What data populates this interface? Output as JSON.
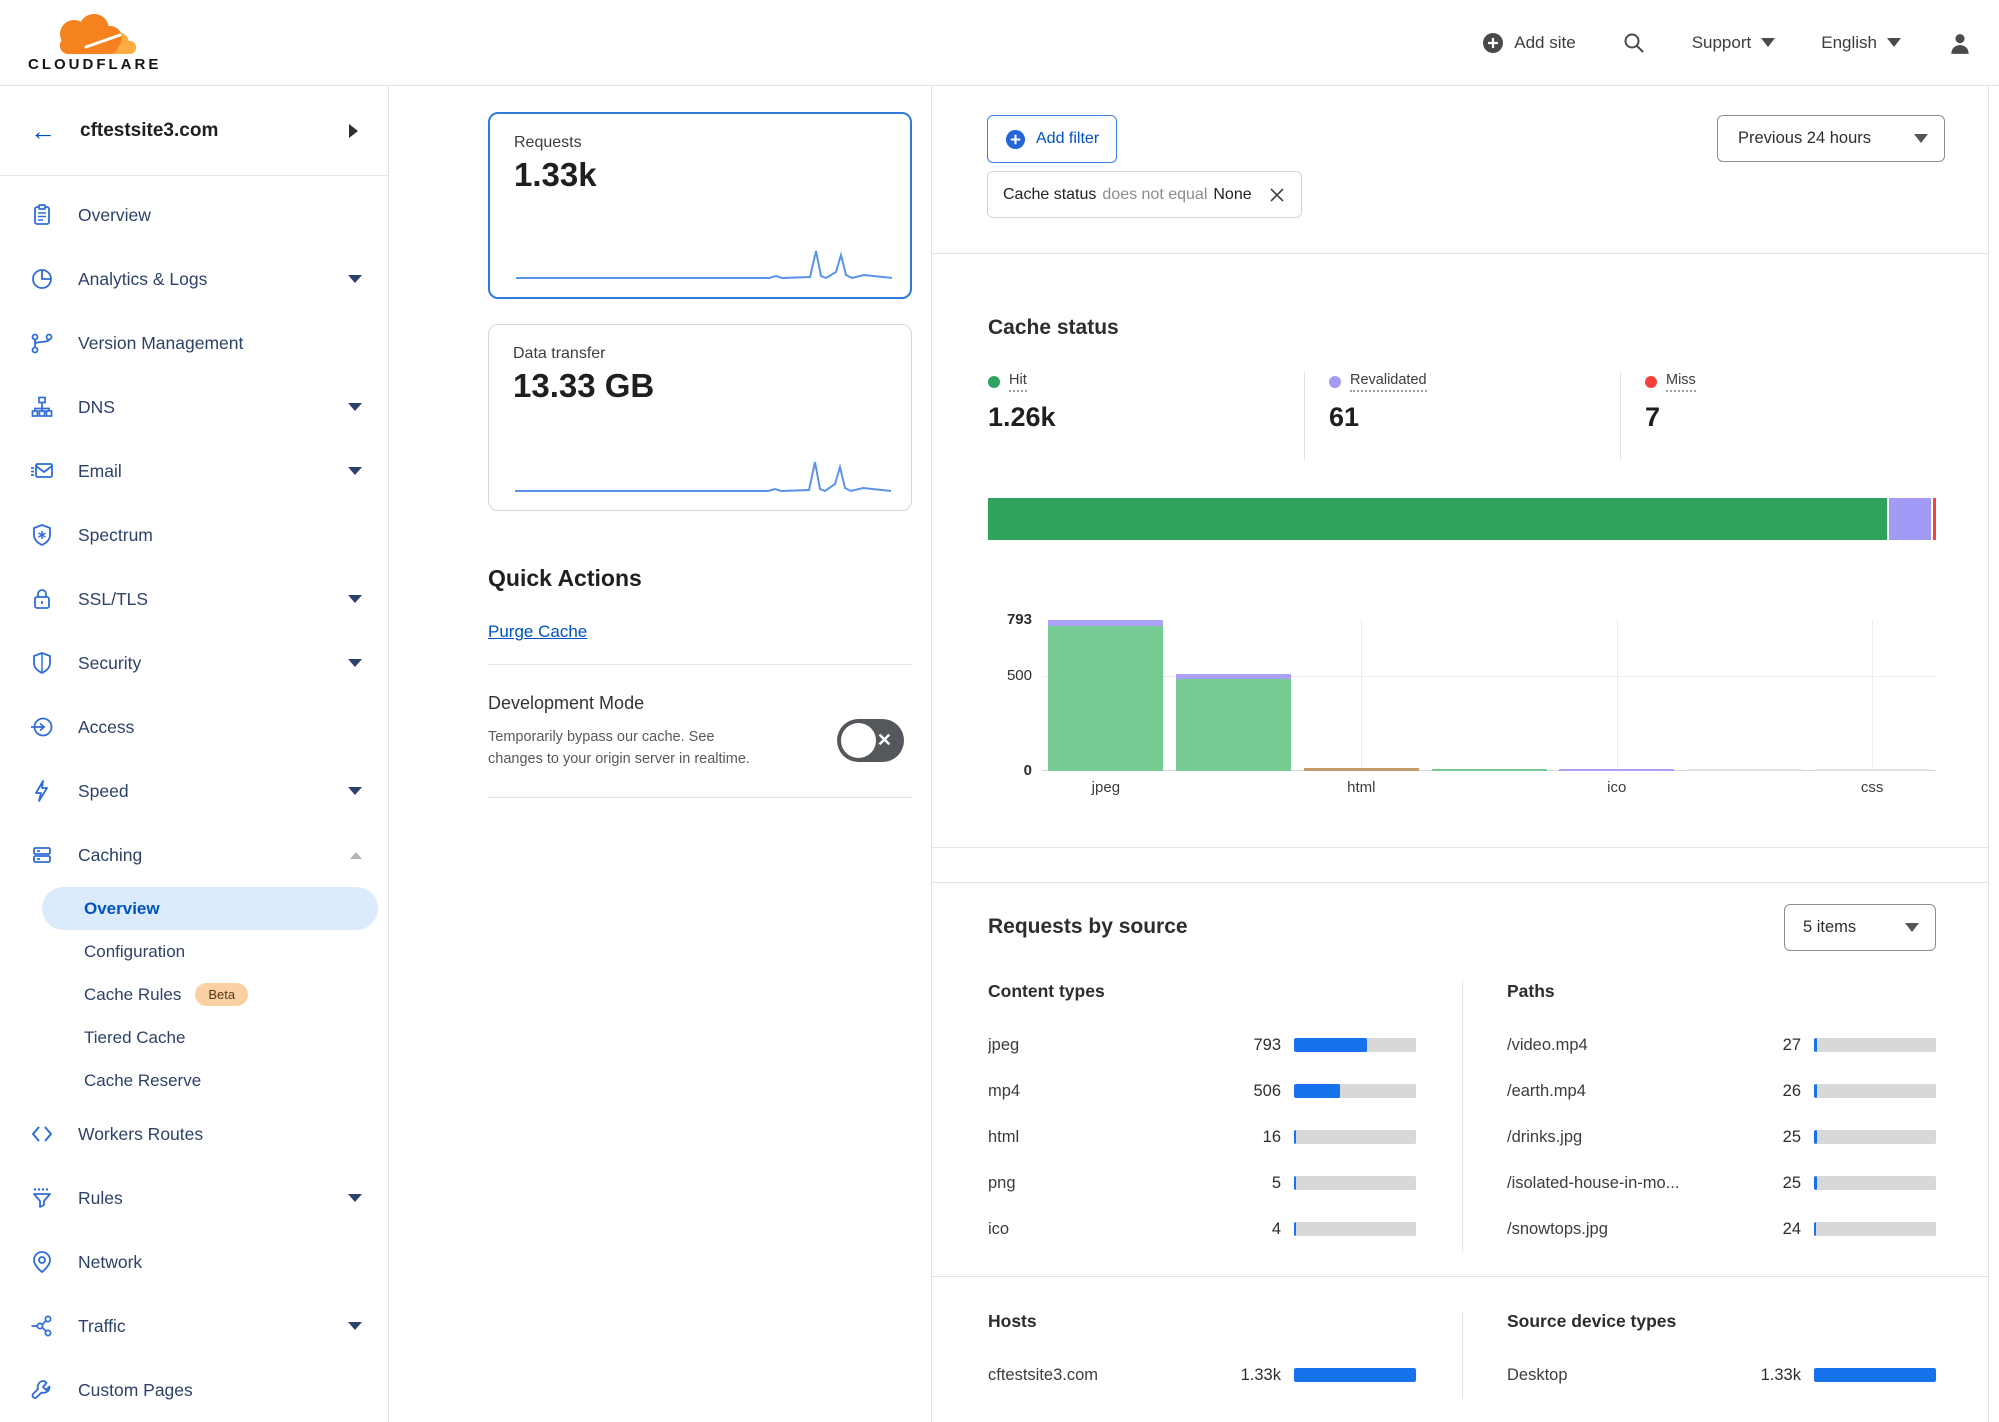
{
  "header": {
    "logo_text": "CLOUDFLARE",
    "nav": {
      "add_site": "Add site",
      "support": "Support",
      "language": "English"
    }
  },
  "sidebar": {
    "site": "cftestsite3.com",
    "items": [
      {
        "label": "Overview",
        "icon": "overview",
        "expandable": false
      },
      {
        "label": "Analytics & Logs",
        "icon": "analytics",
        "expandable": true
      },
      {
        "label": "Version Management",
        "icon": "version-management",
        "expandable": false
      },
      {
        "label": "DNS",
        "icon": "dns",
        "expandable": true
      },
      {
        "label": "Email",
        "icon": "email",
        "expandable": true
      },
      {
        "label": "Spectrum",
        "icon": "spectrum",
        "expandable": false
      },
      {
        "label": "SSL/TLS",
        "icon": "ssl-tls",
        "expandable": true
      },
      {
        "label": "Security",
        "icon": "security",
        "expandable": true
      },
      {
        "label": "Access",
        "icon": "access",
        "expandable": false
      },
      {
        "label": "Speed",
        "icon": "speed",
        "expandable": true
      },
      {
        "label": "Caching",
        "icon": "caching",
        "expandable": true,
        "expanded": true,
        "children": [
          {
            "label": "Overview",
            "active": true
          },
          {
            "label": "Configuration"
          },
          {
            "label": "Cache Rules",
            "badge": "Beta"
          },
          {
            "label": "Tiered Cache"
          },
          {
            "label": "Cache Reserve"
          }
        ]
      },
      {
        "label": "Workers Routes",
        "icon": "workers-routes",
        "expandable": false
      },
      {
        "label": "Rules",
        "icon": "rules",
        "expandable": true
      },
      {
        "label": "Network",
        "icon": "network",
        "expandable": false
      },
      {
        "label": "Traffic",
        "icon": "traffic",
        "expandable": true
      },
      {
        "label": "Custom Pages",
        "icon": "custom-pages",
        "expandable": false
      }
    ]
  },
  "metrics": {
    "requests": {
      "label": "Requests",
      "value": "1.33k",
      "selected": true
    },
    "data_transfer": {
      "label": "Data transfer",
      "value": "13.33 GB",
      "selected": false
    }
  },
  "quick_actions": {
    "title": "Quick Actions",
    "purge_cache_label": "Purge Cache",
    "dev_mode": {
      "title": "Development Mode",
      "description": "Temporarily bypass our cache. See changes to your origin server in realtime.",
      "enabled": false
    }
  },
  "filters": {
    "add_filter_label": "Add filter",
    "chip": {
      "field": "Cache status",
      "operator": "does not equal",
      "value": "None"
    },
    "time_range": "Previous 24 hours"
  },
  "requests_by_source": {
    "title": "Requests by source",
    "items_dropdown": "5 items",
    "tables": [
      {
        "id": "content-types",
        "header": "Content types",
        "rows": [
          {
            "label": "jpeg",
            "value": "793",
            "fill_pct": 60
          },
          {
            "label": "mp4",
            "value": "506",
            "fill_pct": 38
          },
          {
            "label": "html",
            "value": "16",
            "fill_pct": 2
          },
          {
            "label": "png",
            "value": "5",
            "fill_pct": 1.5
          },
          {
            "label": "ico",
            "value": "4",
            "fill_pct": 1.5
          }
        ]
      },
      {
        "id": "paths",
        "header": "Paths",
        "rows": [
          {
            "label": "/video.mp4",
            "value": "27",
            "fill_pct": 2.2
          },
          {
            "label": "/earth.mp4",
            "value": "26",
            "fill_pct": 2.2
          },
          {
            "label": "/drinks.jpg",
            "value": "25",
            "fill_pct": 2.1
          },
          {
            "label": "/isolated-house-in-mo...",
            "value": "25",
            "fill_pct": 2.1
          },
          {
            "label": "/snowtops.jpg",
            "value": "24",
            "fill_pct": 2
          }
        ]
      },
      {
        "id": "hosts",
        "header": "Hosts",
        "rows": [
          {
            "label": "cftestsite3.com",
            "value": "1.33k",
            "fill_pct": 100
          }
        ]
      },
      {
        "id": "source-device-types",
        "header": "Source device types",
        "rows": [
          {
            "label": "Desktop",
            "value": "1.33k",
            "fill_pct": 100
          }
        ]
      }
    ]
  },
  "chart_data": [
    {
      "type": "bar",
      "subtype": "horizontal-stacked-distribution",
      "title": "Cache status",
      "series": [
        {
          "name": "Hit",
          "value": 1260,
          "display": "1.26k",
          "color": "#2fa35c"
        },
        {
          "name": "Revalidated",
          "value": 61,
          "display": "61",
          "color": "#a29bf5"
        },
        {
          "name": "Miss",
          "value": 7,
          "display": "7",
          "color": "#f5413d"
        }
      ],
      "legend_position": "top",
      "total": 1328
    },
    {
      "type": "bar",
      "title": "Cache status by content type",
      "ymax": 793,
      "yticks": [
        793,
        500,
        0
      ],
      "grid_slots": [
        2,
        4,
        6
      ],
      "labeled_slots": [
        0,
        2,
        4,
        6
      ],
      "segment_colors": {
        "Hit": "#76cb92",
        "Revalidated": "#a9a2f6",
        "Other": "#c39a6b",
        "None": "#e2e2e2"
      },
      "categories": [
        "jpeg",
        "mp4",
        "html",
        "png",
        "ico",
        "",
        "css"
      ],
      "bars": [
        {
          "category": "jpeg",
          "segments": [
            {
              "name": "Hit",
              "value": 760
            },
            {
              "name": "Revalidated",
              "value": 33
            }
          ]
        },
        {
          "category": "mp4",
          "segments": [
            {
              "name": "Hit",
              "value": 481
            },
            {
              "name": "Revalidated",
              "value": 25
            }
          ]
        },
        {
          "category": "html",
          "segments": [
            {
              "name": "Other",
              "value": 16
            }
          ]
        },
        {
          "category": "png",
          "segments": [
            {
              "name": "Hit",
              "value": 5
            }
          ]
        },
        {
          "category": "ico",
          "segments": [
            {
              "name": "Revalidated",
              "value": 4
            }
          ]
        },
        {
          "category": "",
          "segments": [
            {
              "name": "None",
              "value": 3
            }
          ]
        },
        {
          "category": "css",
          "segments": [
            {
              "name": "None",
              "value": 3
            }
          ]
        }
      ]
    }
  ]
}
